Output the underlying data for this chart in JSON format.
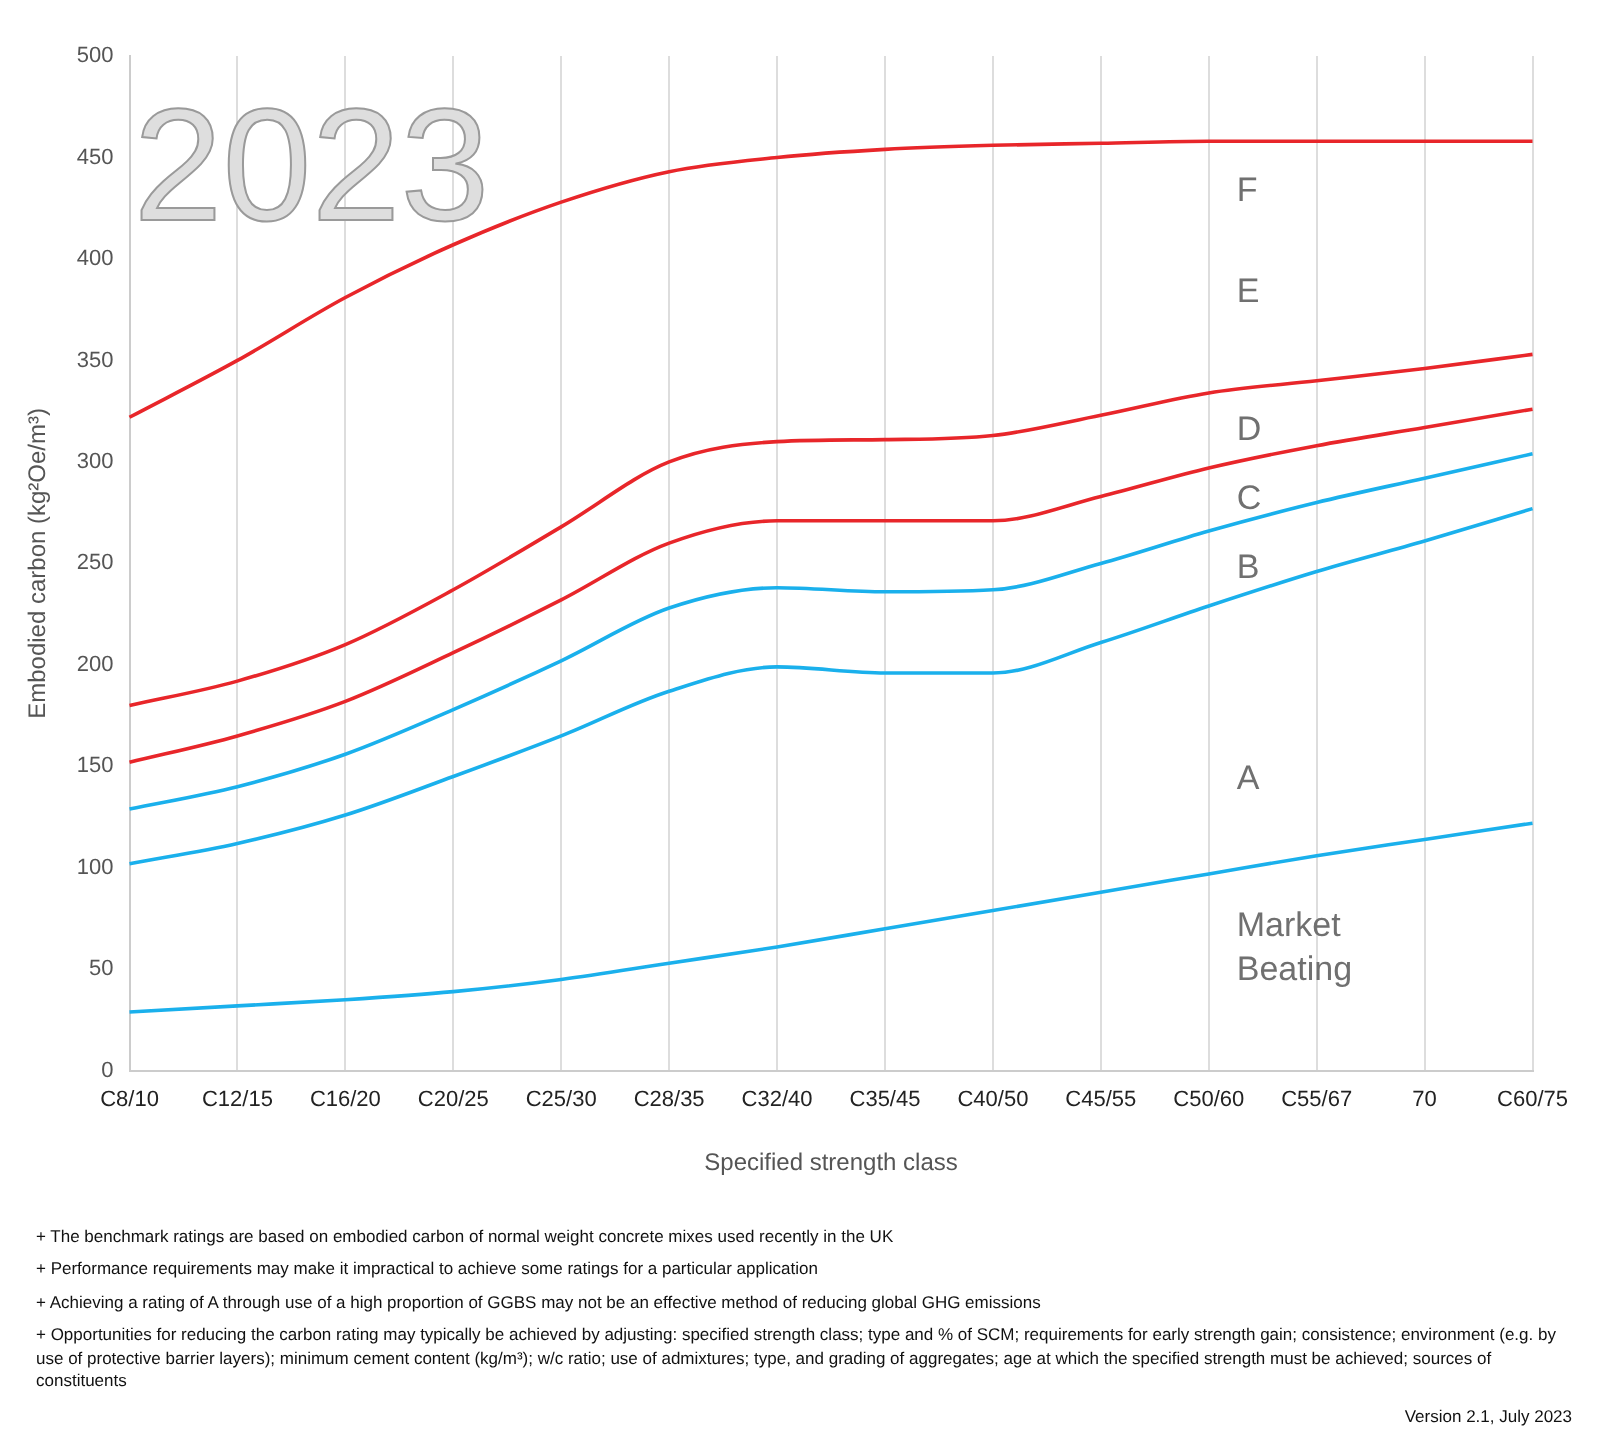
{
  "chart_data": {
    "type": "line",
    "title": "2023",
    "xlabel": "Specified strength class",
    "ylabel": "Embodied carbon (kg²Oe/m³)",
    "categories": [
      "C8/10",
      "C12/15",
      "C16/20",
      "C20/25",
      "C25/30",
      "C28/35",
      "C32/40",
      "C35/45",
      "C40/50",
      "C45/55",
      "C50/60",
      "C55/67",
      "70",
      "C60/75"
    ],
    "series": [
      {
        "color": "#e8262a",
        "values": [
          322,
          350,
          381,
          407,
          428,
          443,
          450,
          454,
          456,
          457,
          458,
          458,
          458,
          458
        ]
      },
      {
        "color": "#e8262a",
        "values": [
          180,
          192,
          210,
          237,
          268,
          300,
          310,
          311,
          313,
          323,
          334,
          340,
          346,
          353
        ]
      },
      {
        "color": "#e8262a",
        "values": [
          152,
          165,
          182,
          206,
          232,
          260,
          271,
          271,
          271,
          283,
          297,
          308,
          317,
          326
        ]
      },
      {
        "color": "#1ab0ec",
        "values": [
          129,
          140,
          156,
          178,
          202,
          228,
          238,
          236,
          237,
          250,
          266,
          280,
          292,
          304
        ]
      },
      {
        "color": "#1ab0ec",
        "values": [
          102,
          112,
          126,
          145,
          165,
          187,
          199,
          196,
          196,
          211,
          229,
          246,
          261,
          277
        ]
      },
      {
        "color": "#1ab0ec",
        "values": [
          29,
          32,
          35,
          39,
          45,
          53,
          61,
          70,
          79,
          88,
          97,
          106,
          114,
          122
        ]
      }
    ],
    "ylim": [
      0,
      500
    ],
    "yticks": [
      0,
      50,
      100,
      150,
      200,
      250,
      300,
      350,
      400,
      450,
      500
    ],
    "grid": "x",
    "legend": false,
    "marker": "none",
    "line_style": "solid",
    "annotations": [
      "F",
      "E",
      "D",
      "C",
      "B",
      "A",
      "Market Beating",
      "+ The benchmark ratings are based on embodied carbon of normal weight concrete mixes used recently in the UK",
      "+ Performance requirements may make it impractical to achieve some ratings for a particular application",
      "+ Achieving a rating of A through use of a high proportion of GGBS may not be an effective method of reducing global GHG emissions",
      "+ Opportunities for reducing the carbon rating may typically be achieved by adjusting: specified strength class; type and % of SCM; requirements for early strength gain; consistence; environment (e.g. by use of protective barrier layers); minimum cement content (kg/m³); w/c ratio; use of admixtures; type, and grading of aggregates; age at which the specified strength must be achieved; sources of constituents",
      "Version 2.1, July 2023"
    ]
  }
}
